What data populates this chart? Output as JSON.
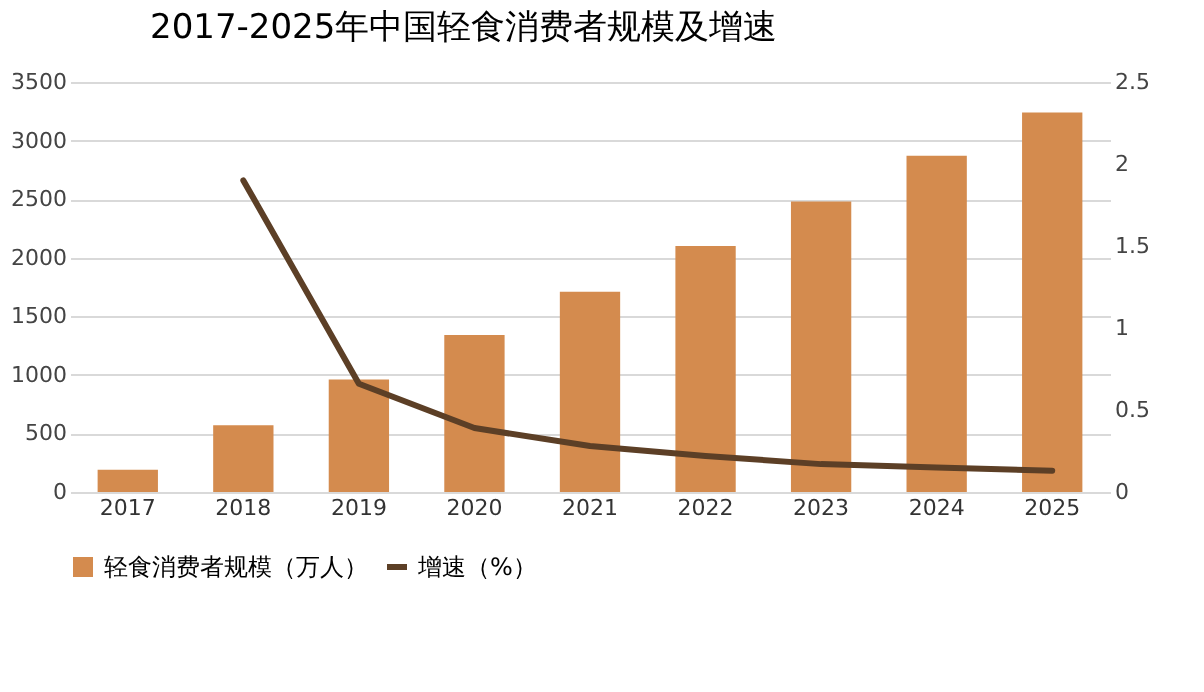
{
  "chart_data": {
    "type": "bar",
    "title": "2017-2025年中国轻食消费者规模及增速",
    "categories": [
      "2017",
      "2018",
      "2019",
      "2020",
      "2021",
      "2022",
      "2023",
      "2024",
      "2025"
    ],
    "series": [
      {
        "name": "轻食消费者规模（万人）",
        "color": "#d48b4e",
        "values": [
          190,
          570,
          960,
          1340,
          1710,
          2100,
          2480,
          2870,
          3240
        ]
      },
      {
        "name": "增速（%）",
        "type": "line",
        "axis": "y2",
        "color": "#5c3f26",
        "values": [
          null,
          1.9,
          0.66,
          0.39,
          0.28,
          0.22,
          0.17,
          0.15,
          0.13
        ]
      }
    ],
    "ylim": [
      0,
      3500
    ],
    "yticks": [
      0,
      500,
      1000,
      1500,
      2000,
      2500,
      3000,
      3500
    ],
    "y2lim": [
      0,
      2.5
    ],
    "y2ticks": [
      0,
      0.5,
      1,
      1.5,
      2,
      2.5
    ],
    "grid": "y",
    "legend": "bottom"
  }
}
